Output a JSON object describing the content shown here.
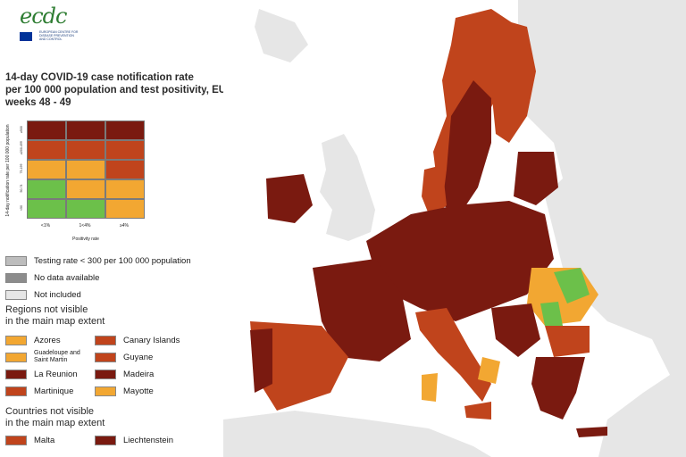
{
  "logo": {
    "text": "ecdc",
    "subtitle": "EUROPEAN CENTRE FOR DISEASE PREVENTION AND CONTROL"
  },
  "title": {
    "line1": "14-day COVID-19 case notification rate",
    "line2": "per 100 000 population and test positivity, EU/EEA",
    "line3": "weeks 48 - 49"
  },
  "matrix": {
    "y_axis_label": "14-day notification rate per 100 000 population",
    "y_ticks": [
      "≥500",
      "≥200-499",
      "75-199",
      "50-74",
      "<50"
    ],
    "x_ticks": [
      "<1%",
      "1<4%",
      "≥4%"
    ],
    "x_axis_label": "Positivity rate",
    "colors": {
      "dark_red": "#7a1a10",
      "red": "#c0441c",
      "orange": "#f2a732",
      "green": "#6cc04a"
    },
    "rows": [
      [
        "dark_red",
        "dark_red",
        "dark_red"
      ],
      [
        "red",
        "red",
        "red"
      ],
      [
        "orange",
        "orange",
        "red"
      ],
      [
        "green",
        "orange",
        "orange"
      ],
      [
        "green",
        "green",
        "orange"
      ]
    ]
  },
  "legend_grey": [
    {
      "label": "Testing rate < 300 per 100 000 population",
      "color": "#bdbdbd"
    },
    {
      "label": "No data available",
      "color": "#8c8c8c"
    },
    {
      "label": "Not included",
      "color": "#e6e6e6"
    }
  ],
  "regions_heading": {
    "line1": "Regions not visible",
    "line2": "in the main map extent"
  },
  "regions": [
    {
      "label": "Azores",
      "color": "#f2a732"
    },
    {
      "label": "Canary Islands",
      "color": "#c0441c"
    },
    {
      "label": "Guadeloupe and Saint Martin",
      "color": "#f2a732"
    },
    {
      "label": "Guyane",
      "color": "#c0441c"
    },
    {
      "label": "La Reunion",
      "color": "#7a1a10"
    },
    {
      "label": "Madeira",
      "color": "#7a1a10"
    },
    {
      "label": "Martinique",
      "color": "#c0441c"
    },
    {
      "label": "Mayotte",
      "color": "#f2a732"
    }
  ],
  "countries_heading": {
    "line1": "Countries not visible",
    "line2": "in the main map extent"
  },
  "countries": [
    {
      "label": "Malta",
      "color": "#c0441c"
    },
    {
      "label": "Liechtenstein",
      "color": "#7a1a10"
    }
  ]
}
